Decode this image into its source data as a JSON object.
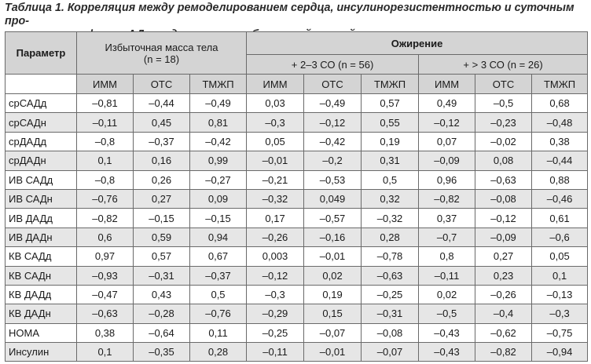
{
  "caption": {
    "line1": "Таблица 1. Корреляция между ремоделированием сердца, инсулинорезистентностью и суточным про-",
    "line2": "филем АД у подростков с избыточной массой тела и ожирением, r"
  },
  "header": {
    "param": "Параметр",
    "group_overweight": "Избыточная масса тела",
    "group_overweight_n": "(n = 18)",
    "group_obesity": "Ожирение",
    "sub_23": "+ 2–3 СО (n = 56)",
    "sub_3": "+ > 3 СО (n = 26)",
    "cols": [
      "ИММ",
      "ОТС",
      "ТМЖП",
      "ИММ",
      "ОТС",
      "ТМЖП",
      "ИММ",
      "ОТС",
      "ТМЖП"
    ]
  },
  "rows": [
    {
      "param": "срСАДд",
      "v": [
        "–0,81",
        "–0,44",
        "–0,49",
        "0,03",
        "–0,49",
        "0,57",
        "0,49",
        "–0,5",
        "0,68"
      ]
    },
    {
      "param": "срСАДн",
      "v": [
        "–0,11",
        "0,45",
        "0,81",
        "–0,3",
        "–0,12",
        "0,55",
        "–0,12",
        "–0,23",
        "–0,48"
      ]
    },
    {
      "param": "срДАДд",
      "v": [
        "–0,8",
        "–0,37",
        "–0,42",
        "0,05",
        "–0,42",
        "0,19",
        "0,07",
        "–0,02",
        "0,38"
      ]
    },
    {
      "param": "срДАДн",
      "v": [
        "0,1",
        "0,16",
        "0,99",
        "–0,01",
        "–0,2",
        "0,31",
        "–0,09",
        "0,08",
        "–0,44"
      ]
    },
    {
      "param": "ИВ САДд",
      "v": [
        "–0,8",
        "0,26",
        "–0,27",
        "–0,21",
        "–0,53",
        "0,5",
        "0,96",
        "–0,63",
        "0,88"
      ]
    },
    {
      "param": "ИВ САДн",
      "v": [
        "–0,76",
        "0,27",
        "0,09",
        "–0,32",
        "0,049",
        "0,32",
        "–0,82",
        "–0,08",
        "–0,46"
      ]
    },
    {
      "param": "ИВ ДАДд",
      "v": [
        "–0,82",
        "–0,15",
        "–0,15",
        "0,17",
        "–0,57",
        "–0,32",
        "0,37",
        "–0,12",
        "0,61"
      ]
    },
    {
      "param": "ИВ ДАДн",
      "v": [
        "0,6",
        "0,59",
        "0,94",
        "–0,26",
        "–0,16",
        "0,28",
        "–0,7",
        "–0,09",
        "–0,6"
      ]
    },
    {
      "param": "КВ САДд",
      "v": [
        "0,97",
        "0,57",
        "0,67",
        "0,003",
        "–0,01",
        "–0,78",
        "0,8",
        "0,27",
        "0,05"
      ]
    },
    {
      "param": "КВ САДн",
      "v": [
        "–0,93",
        "–0,31",
        "–0,37",
        "–0,12",
        "0,02",
        "–0,63",
        "–0,11",
        "0,23",
        "0,1"
      ]
    },
    {
      "param": "КВ ДАДд",
      "v": [
        "–0,47",
        "0,43",
        "0,5",
        "–0,3",
        "0,19",
        "–0,25",
        "0,02",
        "–0,26",
        "–0,13"
      ]
    },
    {
      "param": "КВ ДАДн",
      "v": [
        "–0,63",
        "–0,28",
        "–0,76",
        "–0,29",
        "0,15",
        "–0,31",
        "–0,5",
        "–0,4",
        "–0,3"
      ]
    },
    {
      "param": "HOMA",
      "v": [
        "0,38",
        "–0,64",
        "0,11",
        "–0,25",
        "–0,07",
        "–0,08",
        "–0,43",
        "–0,62",
        "–0,75"
      ]
    },
    {
      "param": "Инсулин",
      "v": [
        "0,1",
        "–0,35",
        "0,28",
        "–0,11",
        "–0,01",
        "–0,07",
        "–0,43",
        "–0,82",
        "–0,94"
      ]
    }
  ]
}
